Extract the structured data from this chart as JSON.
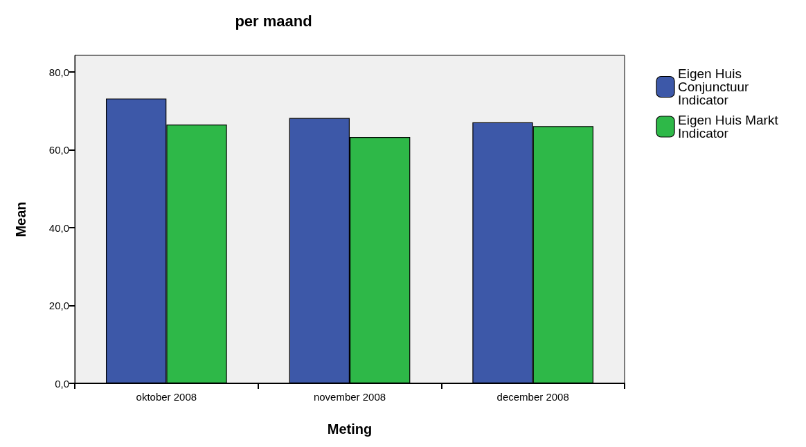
{
  "chart_data": {
    "type": "bar",
    "title": "per maand",
    "xlabel": "Meting",
    "ylabel": "Mean",
    "categories": [
      "oktober 2008",
      "november 2008",
      "december 2008"
    ],
    "series": [
      {
        "name": "Eigen Huis Conjunctuur Indicator",
        "color": "#3d58a8",
        "values": [
          73.2,
          68.2,
          67.1
        ]
      },
      {
        "name": "Eigen Huis Markt Indicator",
        "color": "#2eb848",
        "values": [
          66.5,
          63.3,
          66.1
        ]
      }
    ],
    "ylim": [
      0,
      84.3
    ],
    "yticks": [
      {
        "value": 0,
        "label": "0,0"
      },
      {
        "value": 20,
        "label": "20,0"
      },
      {
        "value": 40,
        "label": "40,0"
      },
      {
        "value": 60,
        "label": "60,0"
      },
      {
        "value": 80,
        "label": "80,0"
      }
    ],
    "grid": false,
    "legend": "top right"
  }
}
